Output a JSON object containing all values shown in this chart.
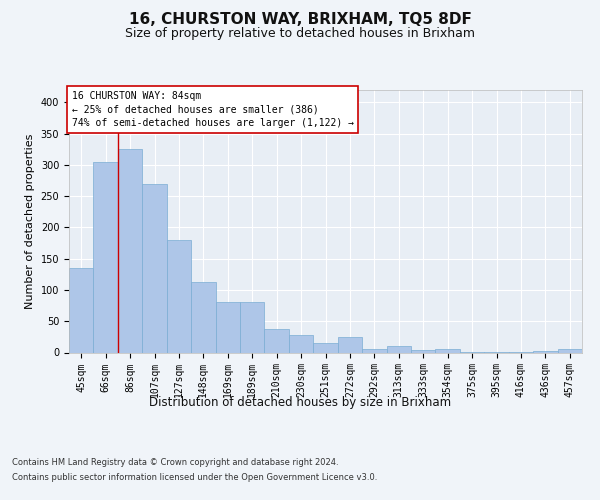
{
  "title1": "16, CHURSTON WAY, BRIXHAM, TQ5 8DF",
  "title2": "Size of property relative to detached houses in Brixham",
  "xlabel": "Distribution of detached houses by size in Brixham",
  "ylabel": "Number of detached properties",
  "categories": [
    "45sqm",
    "66sqm",
    "86sqm",
    "107sqm",
    "127sqm",
    "148sqm",
    "169sqm",
    "189sqm",
    "210sqm",
    "230sqm",
    "251sqm",
    "272sqm",
    "292sqm",
    "313sqm",
    "333sqm",
    "354sqm",
    "375sqm",
    "395sqm",
    "416sqm",
    "436sqm",
    "457sqm"
  ],
  "values": [
    135,
    305,
    325,
    270,
    180,
    113,
    81,
    81,
    38,
    28,
    15,
    25,
    5,
    10,
    4,
    6,
    1,
    1,
    1,
    3,
    5
  ],
  "bar_color": "#aec6e8",
  "bar_edge_color": "#7aadd4",
  "vline_x": 1.5,
  "annotation_text": "16 CHURSTON WAY: 84sqm\n← 25% of detached houses are smaller (386)\n74% of semi-detached houses are larger (1,122) →",
  "annotation_box_color": "#ffffff",
  "annotation_border_color": "#cc0000",
  "footer1": "Contains HM Land Registry data © Crown copyright and database right 2024.",
  "footer2": "Contains public sector information licensed under the Open Government Licence v3.0.",
  "ylim": [
    0,
    420
  ],
  "yticks": [
    0,
    50,
    100,
    150,
    200,
    250,
    300,
    350,
    400
  ],
  "background_color": "#f0f4f9",
  "plot_bg_color": "#e8eef5",
  "grid_color": "#ffffff",
  "title1_fontsize": 11,
  "title2_fontsize": 9,
  "ylabel_fontsize": 8,
  "xlabel_fontsize": 8.5,
  "tick_fontsize": 7,
  "annot_fontsize": 7,
  "footer_fontsize": 6
}
